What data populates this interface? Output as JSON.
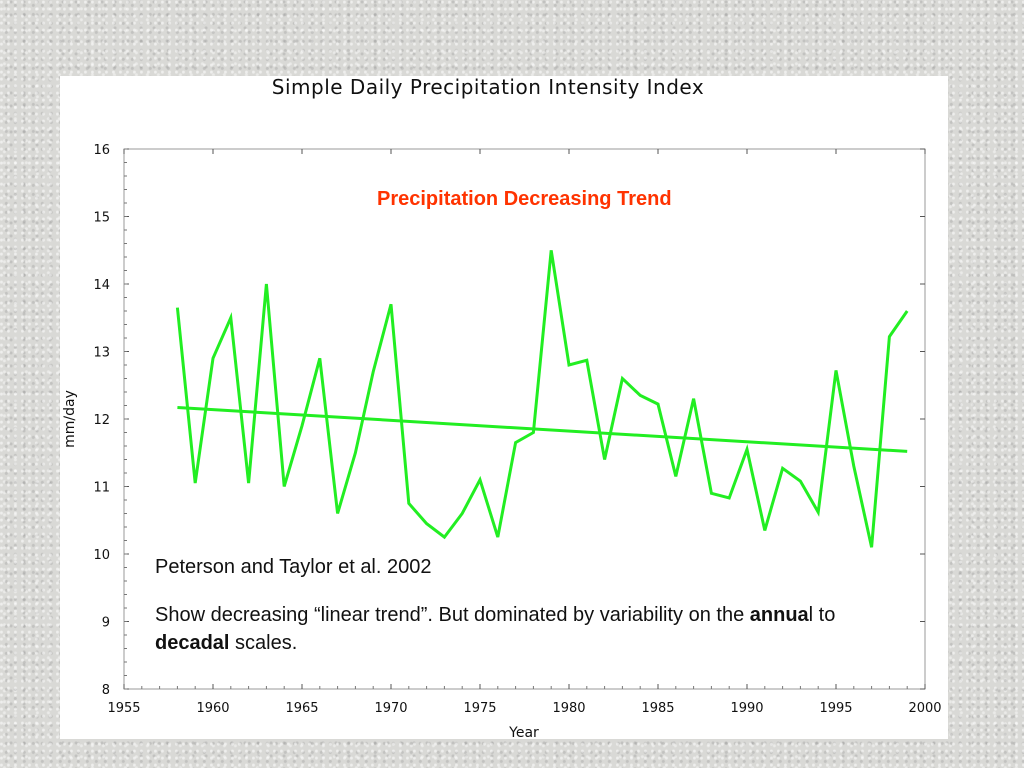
{
  "chart_data": {
    "type": "line",
    "title": "Simple Daily Precipitation Intensity Index",
    "xlabel": "Year",
    "ylabel": "mm/day",
    "xlim": [
      1955,
      2000
    ],
    "ylim": [
      8,
      16
    ],
    "xticks": [
      1955,
      1960,
      1965,
      1970,
      1975,
      1980,
      1985,
      1990,
      1995,
      2000
    ],
    "yticks": [
      8,
      9,
      10,
      11,
      12,
      13,
      14,
      15,
      16
    ],
    "grid": false,
    "series": [
      {
        "color": "#22ee22",
        "x": [
          1958,
          1959,
          1960,
          1961,
          1962,
          1963,
          1964,
          1965,
          1966,
          1967,
          1968,
          1969,
          1970,
          1971,
          1972,
          1973,
          1974,
          1975,
          1976,
          1977,
          1978,
          1979,
          1980,
          1981,
          1982,
          1983,
          1984,
          1985,
          1986,
          1987,
          1988,
          1989,
          1990,
          1991,
          1992,
          1993,
          1994,
          1995,
          1996,
          1997,
          1998,
          1999
        ],
        "y": [
          13.65,
          11.05,
          12.9,
          13.5,
          11.05,
          14.0,
          11.0,
          11.9,
          12.9,
          10.6,
          11.5,
          12.7,
          13.7,
          10.75,
          10.45,
          10.25,
          10.6,
          11.1,
          10.25,
          11.65,
          11.8,
          14.5,
          12.8,
          12.87,
          11.4,
          12.6,
          12.35,
          12.22,
          11.15,
          12.3,
          10.9,
          10.83,
          11.55,
          10.35,
          11.27,
          11.08,
          10.62,
          12.72,
          11.3,
          10.1,
          13.22,
          13.6
        ]
      },
      {
        "color": "#22ee22",
        "x": [
          1958,
          1999
        ],
        "y": [
          12.17,
          11.52
        ]
      }
    ],
    "annotations": [
      "Precipitation Decreasing Trend"
    ]
  },
  "notes": {
    "trend": "Precipitation Decreasing Trend",
    "citation": "Peterson and Taylor et al. 2002",
    "desc_part1": "Show decreasing “linear trend”. But dominated by variability on the ",
    "desc_bold1": "annua",
    "desc_part2": "l to ",
    "desc_bold2": "decadal",
    "desc_part3": " scales."
  }
}
